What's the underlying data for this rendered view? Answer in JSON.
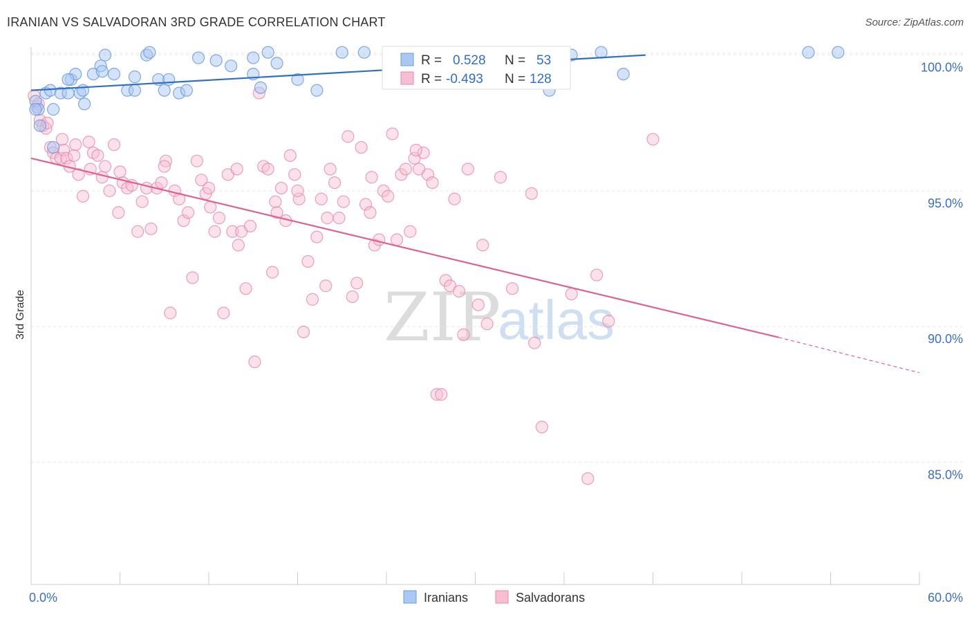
{
  "title": "IRANIAN VS SALVADORAN 3RD GRADE CORRELATION CHART",
  "source": "Source: ZipAtlas.com",
  "watermark": {
    "zip": "ZIP",
    "atlas": "atlas"
  },
  "colors": {
    "blue": "#6b9be0",
    "blue_fill": "#aac8f2",
    "blue_line": "#2f6fcb",
    "pink": "#e888a8",
    "pink_fill": "#f6bfd0",
    "pink_line": "#e0608f",
    "tick_text": "#3a6fc8"
  },
  "legend": {
    "rows": [
      {
        "r_label": "R =",
        "r_value": "0.528",
        "n_label": "N =",
        "n_value": "53",
        "color": "#aac8f2",
        "stroke": "#6b9be0"
      },
      {
        "r_label": "R =",
        "r_value": "-0.493",
        "n_label": "N =",
        "n_value": "128",
        "color": "#f6bfd0",
        "stroke": "#e888a8"
      }
    ]
  },
  "bottom_legend": [
    {
      "label": "Iranians",
      "color": "#aac8f2",
      "stroke": "#6b9be0"
    },
    {
      "label": "Salvadorans",
      "color": "#f6bfd0",
      "stroke": "#e888a8"
    }
  ],
  "chart_data": {
    "type": "scatter",
    "title": "IRANIAN VS SALVADORAN 3RD GRADE CORRELATION CHART",
    "xlabel": "",
    "ylabel": "3rd Grade",
    "xlim": [
      0,
      60
    ],
    "ylim": [
      80.5,
      100.5
    ],
    "x_tick_labels": [
      {
        "value": 0,
        "label": "0.0%"
      },
      {
        "value": 60,
        "label": "60.0%"
      }
    ],
    "y_tick_labels": [
      {
        "value": 100,
        "label": "100.0%"
      },
      {
        "value": 95,
        "label": "95.0%"
      },
      {
        "value": 90,
        "label": "90.0%"
      },
      {
        "value": 85,
        "label": "85.0%"
      }
    ],
    "x_minor_ticks": [
      0,
      6,
      12,
      18,
      24,
      30,
      36,
      42,
      48,
      54,
      60
    ],
    "series": [
      {
        "name": "Iranians",
        "r": 0.528,
        "n": 53,
        "trend": {
          "x0": 0,
          "y0": 98.7,
          "x1": 41.5,
          "y1": 100.0
        },
        "points": [
          [
            0.3,
            98.3
          ],
          [
            0.5,
            98.0
          ],
          [
            1.0,
            98.6
          ],
          [
            1.3,
            98.7
          ],
          [
            1.5,
            98.0
          ],
          [
            2.0,
            98.6
          ],
          [
            2.5,
            98.6
          ],
          [
            2.7,
            99.1
          ],
          [
            3.0,
            99.3
          ],
          [
            3.3,
            98.6
          ],
          [
            3.5,
            98.7
          ],
          [
            3.6,
            98.2
          ],
          [
            4.2,
            99.3
          ],
          [
            4.7,
            99.6
          ],
          [
            4.8,
            99.4
          ],
          [
            5.0,
            100.0
          ],
          [
            5.6,
            99.3
          ],
          [
            6.5,
            98.7
          ],
          [
            7.0,
            99.2
          ],
          [
            7.8,
            100.0
          ],
          [
            8.0,
            100.1
          ],
          [
            8.6,
            99.1
          ],
          [
            9.0,
            98.7
          ],
          [
            9.3,
            99.1
          ],
          [
            10.0,
            98.6
          ],
          [
            11.3,
            99.9
          ],
          [
            12.5,
            99.8
          ],
          [
            13.5,
            99.6
          ],
          [
            15.0,
            99.9
          ],
          [
            15.5,
            98.8
          ],
          [
            16.0,
            100.1
          ],
          [
            16.6,
            99.7
          ],
          [
            18.0,
            99.1
          ],
          [
            19.3,
            98.7
          ],
          [
            21.0,
            100.1
          ],
          [
            22.5,
            100.1
          ],
          [
            25.0,
            99.2
          ],
          [
            27.0,
            100.1
          ],
          [
            29.5,
            100.0
          ],
          [
            31.0,
            100.0
          ],
          [
            35.0,
            98.7
          ],
          [
            36.5,
            100.0
          ],
          [
            38.5,
            100.1
          ],
          [
            40.0,
            99.3
          ],
          [
            52.5,
            100.1
          ],
          [
            54.5,
            100.1
          ],
          [
            0.3,
            98.0
          ],
          [
            1.5,
            96.6
          ],
          [
            0.6,
            97.4
          ],
          [
            7.0,
            98.7
          ],
          [
            10.5,
            98.7
          ],
          [
            15.0,
            99.3
          ],
          [
            2.5,
            99.1
          ]
        ]
      },
      {
        "name": "Salvadorans",
        "r": -0.493,
        "n": 128,
        "trend": {
          "x0": 0,
          "y0": 96.2,
          "x1": 50.5,
          "y1": 89.6
        },
        "trend_dashed": {
          "x0": 50.5,
          "y0": 89.6,
          "x1": 60,
          "y1": 88.3
        },
        "points": [
          [
            0.2,
            98.5
          ],
          [
            0.4,
            98.1
          ],
          [
            0.6,
            97.6
          ],
          [
            0.8,
            97.4
          ],
          [
            1.0,
            97.3
          ],
          [
            1.3,
            96.6
          ],
          [
            1.5,
            96.4
          ],
          [
            1.7,
            96.2
          ],
          [
            2.0,
            96.2
          ],
          [
            2.2,
            96.5
          ],
          [
            2.4,
            96.2
          ],
          [
            2.6,
            95.9
          ],
          [
            2.9,
            96.3
          ],
          [
            3.2,
            95.6
          ],
          [
            3.5,
            94.8
          ],
          [
            3.9,
            96.8
          ],
          [
            4.2,
            96.4
          ],
          [
            4.5,
            96.3
          ],
          [
            4.8,
            95.5
          ],
          [
            5.0,
            95.9
          ],
          [
            5.3,
            95.0
          ],
          [
            5.6,
            96.7
          ],
          [
            5.9,
            94.2
          ],
          [
            6.2,
            95.3
          ],
          [
            6.5,
            95.1
          ],
          [
            6.8,
            95.2
          ],
          [
            7.2,
            93.5
          ],
          [
            7.5,
            94.6
          ],
          [
            7.8,
            95.1
          ],
          [
            8.1,
            93.6
          ],
          [
            8.5,
            95.1
          ],
          [
            8.8,
            95.3
          ],
          [
            9.1,
            96.1
          ],
          [
            9.4,
            90.5
          ],
          [
            9.7,
            95.0
          ],
          [
            10.0,
            94.7
          ],
          [
            10.3,
            93.9
          ],
          [
            10.6,
            94.2
          ],
          [
            10.9,
            91.8
          ],
          [
            11.2,
            96.1
          ],
          [
            11.5,
            95.4
          ],
          [
            11.8,
            94.9
          ],
          [
            12.1,
            94.4
          ],
          [
            12.4,
            93.5
          ],
          [
            12.7,
            94.0
          ],
          [
            13.0,
            90.5
          ],
          [
            13.3,
            95.6
          ],
          [
            13.6,
            93.5
          ],
          [
            13.9,
            95.8
          ],
          [
            14.2,
            93.5
          ],
          [
            14.5,
            91.4
          ],
          [
            14.8,
            93.7
          ],
          [
            15.1,
            88.7
          ],
          [
            15.4,
            98.6
          ],
          [
            15.7,
            95.9
          ],
          [
            16.0,
            95.8
          ],
          [
            16.3,
            92.0
          ],
          [
            16.6,
            94.2
          ],
          [
            16.9,
            95.1
          ],
          [
            17.2,
            93.9
          ],
          [
            17.5,
            96.3
          ],
          [
            17.8,
            95.6
          ],
          [
            18.1,
            94.7
          ],
          [
            18.4,
            89.8
          ],
          [
            18.7,
            92.4
          ],
          [
            19.0,
            91.0
          ],
          [
            19.3,
            93.3
          ],
          [
            19.6,
            94.7
          ],
          [
            19.9,
            91.5
          ],
          [
            20.2,
            95.8
          ],
          [
            20.5,
            95.3
          ],
          [
            20.8,
            94.0
          ],
          [
            21.1,
            94.6
          ],
          [
            21.4,
            97.0
          ],
          [
            21.7,
            91.1
          ],
          [
            22.0,
            91.6
          ],
          [
            22.3,
            96.6
          ],
          [
            22.6,
            94.5
          ],
          [
            22.9,
            94.2
          ],
          [
            23.2,
            93.0
          ],
          [
            23.5,
            93.2
          ],
          [
            23.8,
            95.0
          ],
          [
            24.1,
            94.8
          ],
          [
            24.4,
            97.1
          ],
          [
            24.7,
            93.2
          ],
          [
            25.0,
            95.6
          ],
          [
            25.3,
            95.8
          ],
          [
            25.6,
            93.5
          ],
          [
            25.9,
            96.2
          ],
          [
            26.2,
            95.8
          ],
          [
            26.5,
            96.4
          ],
          [
            26.8,
            95.6
          ],
          [
            27.1,
            95.3
          ],
          [
            27.4,
            87.5
          ],
          [
            27.7,
            87.5
          ],
          [
            28.0,
            91.7
          ],
          [
            28.3,
            91.5
          ],
          [
            28.6,
            94.7
          ],
          [
            28.9,
            91.3
          ],
          [
            29.2,
            89.7
          ],
          [
            29.5,
            95.8
          ],
          [
            30.2,
            90.8
          ],
          [
            30.8,
            90.1
          ],
          [
            31.7,
            95.5
          ],
          [
            32.5,
            91.4
          ],
          [
            33.8,
            94.9
          ],
          [
            34.0,
            89.4
          ],
          [
            34.5,
            86.3
          ],
          [
            36.5,
            91.2
          ],
          [
            37.6,
            84.4
          ],
          [
            38.2,
            91.9
          ],
          [
            39.0,
            90.2
          ],
          [
            42.0,
            96.9
          ],
          [
            0.5,
            98.2
          ],
          [
            1.1,
            97.5
          ],
          [
            2.1,
            96.9
          ],
          [
            3.0,
            96.7
          ],
          [
            4.0,
            95.8
          ],
          [
            6.0,
            95.7
          ],
          [
            9.0,
            95.9
          ],
          [
            12.0,
            95.1
          ],
          [
            14.0,
            93.0
          ],
          [
            16.5,
            94.6
          ],
          [
            18.0,
            95.0
          ],
          [
            20.0,
            94.0
          ],
          [
            23.0,
            95.5
          ],
          [
            26.0,
            96.5
          ],
          [
            30.5,
            93.0
          ]
        ]
      }
    ]
  }
}
